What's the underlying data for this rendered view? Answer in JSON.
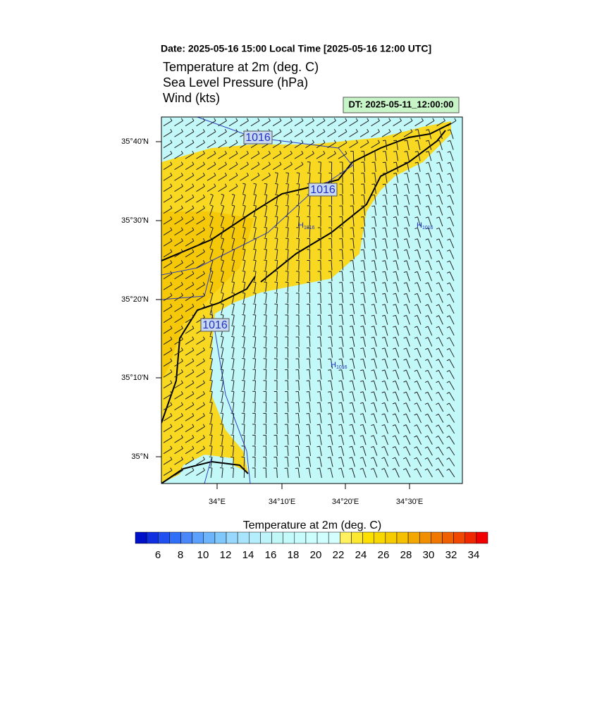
{
  "header": {
    "date": "Date: 2025-05-16  15:00 Local Time [2025-05-16  12:00 UTC]",
    "lines": [
      "Temperature at 2m   (deg. C)",
      "Sea Level Pressure   (hPa)",
      "Wind   (kts)"
    ],
    "dt": "DT: 2025-05-11_12:00:00"
  },
  "map": {
    "lat_ticks": [
      "35°40'N",
      "35°30'N",
      "35°20'N",
      "35°10'N",
      "35°N"
    ],
    "lon_ticks": [
      "34°E",
      "34°10'E",
      "34°20'E",
      "34°30'E"
    ],
    "contour_labels": [
      "1016",
      "1016",
      "1016"
    ],
    "highs": [
      {
        "symbol": "H",
        "value": "1016"
      },
      {
        "symbol": "H",
        "value": "1016"
      },
      {
        "symbol": "H",
        "value": "1016"
      }
    ]
  },
  "colorbar": {
    "title": "Temperature at 2m  (deg. C)",
    "labels": [
      6,
      8,
      10,
      12,
      14,
      16,
      18,
      20,
      22,
      24,
      26,
      28,
      30,
      32,
      34
    ]
  }
}
